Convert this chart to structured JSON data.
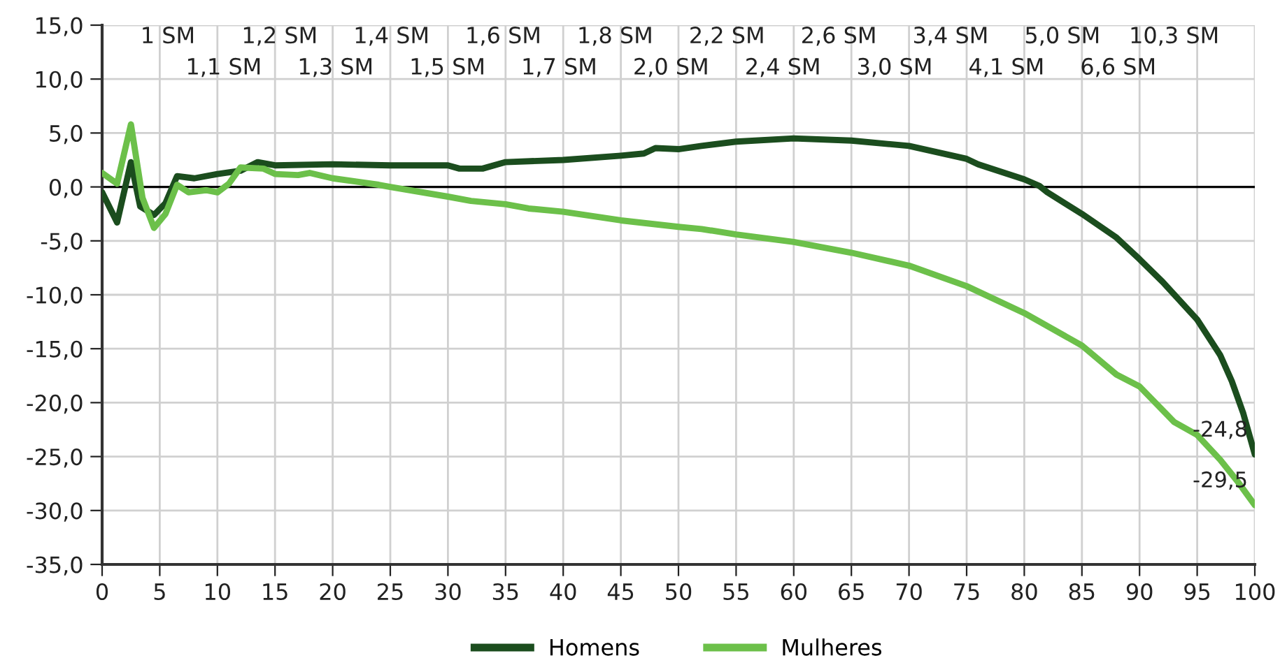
{
  "chart_data": {
    "type": "line",
    "legend": "bottom",
    "grid": true,
    "line_style": "solid",
    "marker": "none",
    "xlim": [
      0,
      100
    ],
    "xticks": [
      0,
      5,
      10,
      15,
      20,
      25,
      30,
      35,
      40,
      45,
      50,
      55,
      60,
      65,
      70,
      75,
      80,
      85,
      90,
      95,
      100
    ],
    "ylim": [
      -35,
      15
    ],
    "yticks": [
      {
        "value": -35,
        "label": "-35,0"
      },
      {
        "value": -30,
        "label": "-30,0"
      },
      {
        "value": -25,
        "label": "-25,0"
      },
      {
        "value": -20,
        "label": "-20,0"
      },
      {
        "value": -15,
        "label": "-15,0"
      },
      {
        "value": -10,
        "label": "-10,0"
      },
      {
        "value": -5,
        "label": "-5,0"
      },
      {
        "value": 0,
        "label": "0,0"
      },
      {
        "value": 5,
        "label": "5,0"
      },
      {
        "value": 10,
        "label": "10,0"
      },
      {
        "value": 15,
        "label": "15,0"
      }
    ],
    "ref_lines": [
      {
        "axis": "y",
        "value": 0,
        "label": null,
        "color": "#000000"
      }
    ],
    "series": [
      {
        "name": "Homens",
        "color": "#1b4d1e",
        "x": [
          0,
          1.3,
          2.5,
          3.3,
          4.5,
          5.5,
          6.5,
          8,
          10,
          12,
          13.5,
          15,
          20,
          25,
          30,
          31,
          33,
          35,
          40,
          45,
          47,
          48,
          50,
          52,
          55,
          60,
          65,
          70,
          75,
          76,
          80,
          81.3,
          82,
          85,
          88,
          90,
          92,
          95,
          97,
          98,
          99,
          100
        ],
        "values": [
          -0.5,
          -3.3,
          2.3,
          -1.8,
          -2.6,
          -1.5,
          1.0,
          0.8,
          1.2,
          1.5,
          2.3,
          2.0,
          2.1,
          2.0,
          2.0,
          1.7,
          1.7,
          2.3,
          2.5,
          2.9,
          3.1,
          3.6,
          3.5,
          3.8,
          4.2,
          4.5,
          4.3,
          3.8,
          2.6,
          2.1,
          0.7,
          0.1,
          -0.5,
          -2.5,
          -4.7,
          -6.7,
          -8.8,
          -12.3,
          -15.6,
          -18,
          -21,
          -24.8
        ],
        "value_labels": [
          null,
          null,
          null,
          null,
          null,
          null,
          null,
          null,
          null,
          null,
          null,
          null,
          null,
          null,
          null,
          null,
          null,
          null,
          null,
          null,
          null,
          null,
          null,
          null,
          null,
          null,
          null,
          null,
          null,
          null,
          null,
          null,
          null,
          null,
          null,
          null,
          null,
          null,
          null,
          null,
          null,
          "-24,8"
        ]
      },
      {
        "name": "Mulheres",
        "color": "#6cc04a",
        "x": [
          0,
          1.3,
          2.5,
          3.5,
          4.5,
          5.5,
          6.5,
          7.5,
          9,
          10,
          11,
          12,
          14,
          15,
          17,
          18,
          20,
          24,
          25,
          30,
          32,
          35,
          37,
          40,
          45,
          50,
          52,
          55,
          60,
          65,
          70,
          75,
          80,
          85,
          88,
          90,
          93,
          95,
          97,
          98.5,
          100
        ],
        "values": [
          1.3,
          0.3,
          5.8,
          -1,
          -3.8,
          -2.5,
          0.2,
          -0.5,
          -0.3,
          -0.5,
          0.3,
          1.8,
          1.7,
          1.2,
          1.1,
          1.3,
          0.8,
          0.2,
          0,
          -0.9,
          -1.3,
          -1.6,
          -2.0,
          -2.3,
          -3.1,
          -3.7,
          -3.9,
          -4.4,
          -5.1,
          -6.1,
          -7.3,
          -9.2,
          -11.7,
          -14.7,
          -17.4,
          -18.5,
          -21.8,
          -23.0,
          -25.3,
          -27.3,
          -29.5
        ],
        "value_labels": [
          null,
          null,
          null,
          null,
          null,
          null,
          null,
          null,
          null,
          null,
          null,
          null,
          null,
          null,
          null,
          null,
          null,
          null,
          null,
          null,
          null,
          null,
          null,
          null,
          null,
          null,
          null,
          null,
          null,
          null,
          null,
          null,
          null,
          null,
          null,
          null,
          null,
          null,
          null,
          null,
          "-29,5"
        ]
      }
    ],
    "annotations": [
      "1 SM",
      "1,1 SM",
      "1,2 SM",
      "1,3 SM",
      "1,4 SM",
      "1,5 SM",
      "1,6 SM",
      "1,7 SM",
      "1,8 SM",
      "2,0 SM",
      "2,2 SM",
      "2,4 SM",
      "2,6 SM",
      "3,0 SM",
      "3,4 SM",
      "4,1 SM",
      "5,0 SM",
      "6,6 SM",
      "10,3 SM"
    ]
  }
}
